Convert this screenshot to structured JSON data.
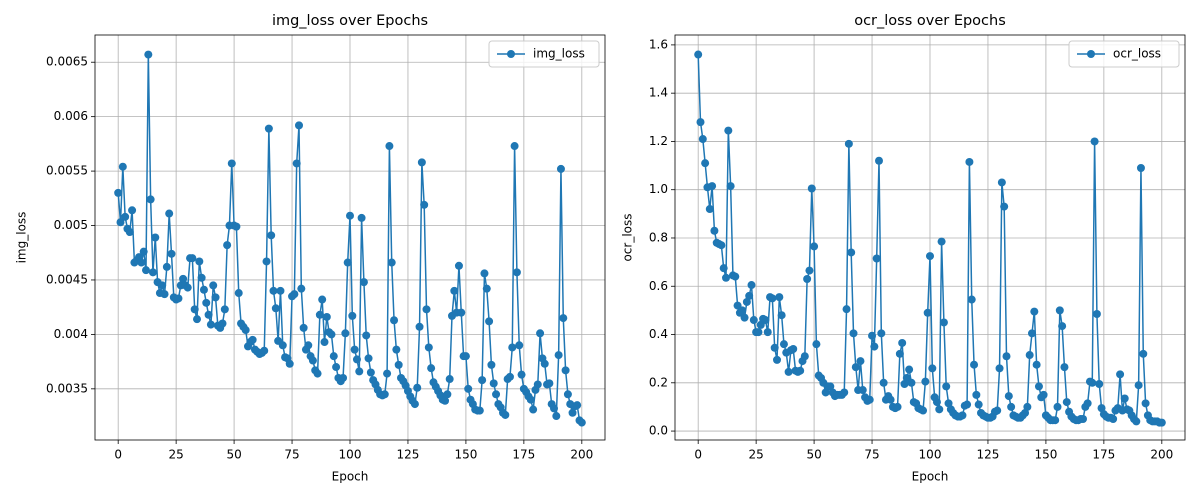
{
  "chart_data": [
    {
      "type": "line",
      "title": "img_loss over Epochs",
      "x_label": "Epoch",
      "y_label": "img_loss",
      "x": [
        0,
        1,
        2,
        3,
        4,
        5,
        6,
        7,
        8,
        9,
        10,
        11,
        12,
        13,
        14,
        15,
        16,
        17,
        18,
        19,
        20,
        21,
        22,
        23,
        24,
        25,
        26,
        27,
        28,
        29,
        30,
        31,
        32,
        33,
        34,
        35,
        36,
        37,
        38,
        39,
        40,
        41,
        42,
        43,
        44,
        45,
        46,
        47,
        48,
        49,
        50,
        51,
        52,
        53,
        54,
        55,
        56,
        57,
        58,
        59,
        60,
        61,
        62,
        63,
        64,
        65,
        66,
        67,
        68,
        69,
        70,
        71,
        72,
        73,
        74,
        75,
        76,
        77,
        78,
        79,
        80,
        81,
        82,
        83,
        84,
        85,
        86,
        87,
        88,
        89,
        90,
        91,
        92,
        93,
        94,
        95,
        96,
        97,
        98,
        99,
        100,
        101,
        102,
        103,
        104,
        105,
        106,
        107,
        108,
        109,
        110,
        111,
        112,
        113,
        114,
        115,
        116,
        117,
        118,
        119,
        120,
        121,
        122,
        123,
        124,
        125,
        126,
        127,
        128,
        129,
        130,
        131,
        132,
        133,
        134,
        135,
        136,
        137,
        138,
        139,
        140,
        141,
        142,
        143,
        144,
        145,
        146,
        147,
        148,
        149,
        150,
        151,
        152,
        153,
        154,
        155,
        156,
        157,
        158,
        159,
        160,
        161,
        162,
        163,
        164,
        165,
        166,
        167,
        168,
        169,
        170,
        171,
        172,
        173,
        174,
        175,
        176,
        177,
        178,
        179,
        180,
        181,
        182,
        183,
        184,
        185,
        186,
        187,
        188,
        189,
        190,
        191,
        192,
        193,
        194,
        195,
        196,
        197,
        198,
        199,
        200
      ],
      "series": [
        {
          "name": "img_loss",
          "color": "#1f77b4",
          "values": [
            0.0053,
            0.00503,
            0.00554,
            0.00508,
            0.00497,
            0.00494,
            0.00514,
            0.00466,
            0.00468,
            0.00471,
            0.00466,
            0.00476,
            0.00459,
            0.00657,
            0.00524,
            0.00457,
            0.00489,
            0.00448,
            0.00438,
            0.00445,
            0.00437,
            0.00462,
            0.00511,
            0.00474,
            0.00434,
            0.00432,
            0.00433,
            0.00445,
            0.00451,
            0.00445,
            0.00443,
            0.0047,
            0.0047,
            0.00423,
            0.00414,
            0.00467,
            0.00452,
            0.00441,
            0.00429,
            0.00418,
            0.00409,
            0.00445,
            0.00434,
            0.00408,
            0.00406,
            0.0041,
            0.00423,
            0.00482,
            0.005,
            0.00557,
            0.005,
            0.00499,
            0.00438,
            0.0041,
            0.00407,
            0.00404,
            0.00389,
            0.00393,
            0.00395,
            0.00386,
            0.00384,
            0.00382,
            0.00383,
            0.00385,
            0.00467,
            0.00589,
            0.00491,
            0.0044,
            0.00424,
            0.00394,
            0.0044,
            0.0039,
            0.00379,
            0.00378,
            0.00373,
            0.00435,
            0.00437,
            0.00557,
            0.00592,
            0.00442,
            0.00406,
            0.00386,
            0.0039,
            0.0038,
            0.00376,
            0.00367,
            0.00364,
            0.00418,
            0.00432,
            0.00393,
            0.00416,
            0.00402,
            0.004,
            0.0038,
            0.0037,
            0.0036,
            0.00357,
            0.0036,
            0.00401,
            0.00466,
            0.00509,
            0.00417,
            0.00386,
            0.00377,
            0.00366,
            0.00507,
            0.00448,
            0.00399,
            0.00378,
            0.00365,
            0.00358,
            0.00354,
            0.00349,
            0.00345,
            0.00344,
            0.00345,
            0.00364,
            0.00573,
            0.00466,
            0.00413,
            0.00386,
            0.00372,
            0.0036,
            0.00357,
            0.00353,
            0.00348,
            0.00343,
            0.00339,
            0.00336,
            0.00351,
            0.00407,
            0.00558,
            0.00519,
            0.00423,
            0.00388,
            0.00369,
            0.00356,
            0.00352,
            0.00348,
            0.00344,
            0.0034,
            0.00339,
            0.00345,
            0.00359,
            0.00417,
            0.0044,
            0.0042,
            0.00463,
            0.0042,
            0.0038,
            0.0038,
            0.0035,
            0.0034,
            0.00336,
            0.00331,
            0.0033,
            0.0033,
            0.00358,
            0.00456,
            0.00442,
            0.00412,
            0.00372,
            0.00355,
            0.00345,
            0.00336,
            0.00333,
            0.00328,
            0.00326,
            0.00359,
            0.00361,
            0.00388,
            0.00573,
            0.00457,
            0.0039,
            0.00363,
            0.0035,
            0.00347,
            0.00343,
            0.0034,
            0.00331,
            0.00349,
            0.00354,
            0.00401,
            0.00378,
            0.00373,
            0.00354,
            0.00355,
            0.00336,
            0.00332,
            0.00325,
            0.00381,
            0.00552,
            0.00415,
            0.00367,
            0.00345,
            0.00336,
            0.00328,
            0.00334,
            0.00335,
            0.00321,
            0.00319
          ]
        }
      ],
      "xlim": [
        -10,
        210
      ],
      "xticks": [
        0,
        25,
        50,
        75,
        100,
        125,
        150,
        175,
        200
      ],
      "ylim": [
        0.00303,
        0.00675
      ],
      "yticks": [
        0.0035,
        0.004,
        0.0045,
        0.005,
        0.0055,
        0.006,
        0.0065
      ],
      "grid": true,
      "legend": "upper right",
      "marker": "circle"
    },
    {
      "type": "line",
      "title": "ocr_loss over Epochs",
      "x_label": "Epoch",
      "y_label": "ocr_loss",
      "x": [
        0,
        1,
        2,
        3,
        4,
        5,
        6,
        7,
        8,
        9,
        10,
        11,
        12,
        13,
        14,
        15,
        16,
        17,
        18,
        19,
        20,
        21,
        22,
        23,
        24,
        25,
        26,
        27,
        28,
        29,
        30,
        31,
        32,
        33,
        34,
        35,
        36,
        37,
        38,
        39,
        40,
        41,
        42,
        43,
        44,
        45,
        46,
        47,
        48,
        49,
        50,
        51,
        52,
        53,
        54,
        55,
        56,
        57,
        58,
        59,
        60,
        61,
        62,
        63,
        64,
        65,
        66,
        67,
        68,
        69,
        70,
        71,
        72,
        73,
        74,
        75,
        76,
        77,
        78,
        79,
        80,
        81,
        82,
        83,
        84,
        85,
        86,
        87,
        88,
        89,
        90,
        91,
        92,
        93,
        94,
        95,
        96,
        97,
        98,
        99,
        100,
        101,
        102,
        103,
        104,
        105,
        106,
        107,
        108,
        109,
        110,
        111,
        112,
        113,
        114,
        115,
        116,
        117,
        118,
        119,
        120,
        121,
        122,
        123,
        124,
        125,
        126,
        127,
        128,
        129,
        130,
        131,
        132,
        133,
        134,
        135,
        136,
        137,
        138,
        139,
        140,
        141,
        142,
        143,
        144,
        145,
        146,
        147,
        148,
        149,
        150,
        151,
        152,
        153,
        154,
        155,
        156,
        157,
        158,
        159,
        160,
        161,
        162,
        163,
        164,
        165,
        166,
        167,
        168,
        169,
        170,
        171,
        172,
        173,
        174,
        175,
        176,
        177,
        178,
        179,
        180,
        181,
        182,
        183,
        184,
        185,
        186,
        187,
        188,
        189,
        190,
        191,
        192,
        193,
        194,
        195,
        196,
        197,
        198,
        199,
        200
      ],
      "series": [
        {
          "name": "ocr_loss",
          "color": "#1f77b4",
          "values": [
            1.56,
            1.28,
            1.21,
            1.11,
            1.01,
            0.92,
            1.015,
            0.83,
            0.78,
            0.775,
            0.77,
            0.675,
            0.635,
            1.245,
            1.015,
            0.645,
            0.64,
            0.52,
            0.49,
            0.5,
            0.47,
            0.535,
            0.56,
            0.605,
            0.46,
            0.41,
            0.41,
            0.44,
            0.465,
            0.46,
            0.41,
            0.555,
            0.55,
            0.345,
            0.295,
            0.555,
            0.48,
            0.36,
            0.325,
            0.245,
            0.335,
            0.34,
            0.25,
            0.245,
            0.25,
            0.29,
            0.31,
            0.63,
            0.665,
            1.005,
            0.765,
            0.36,
            0.23,
            0.22,
            0.2,
            0.16,
            0.185,
            0.185,
            0.16,
            0.145,
            0.15,
            0.15,
            0.15,
            0.16,
            0.505,
            1.19,
            0.74,
            0.405,
            0.265,
            0.17,
            0.29,
            0.17,
            0.14,
            0.125,
            0.13,
            0.395,
            0.35,
            0.715,
            1.12,
            0.405,
            0.2,
            0.13,
            0.145,
            0.13,
            0.1,
            0.095,
            0.1,
            0.32,
            0.365,
            0.195,
            0.22,
            0.255,
            0.2,
            0.12,
            0.115,
            0.095,
            0.09,
            0.085,
            0.205,
            0.49,
            0.725,
            0.26,
            0.14,
            0.12,
            0.09,
            0.785,
            0.45,
            0.185,
            0.115,
            0.09,
            0.075,
            0.065,
            0.06,
            0.06,
            0.065,
            0.105,
            0.11,
            1.115,
            0.545,
            0.275,
            0.15,
            0.11,
            0.075,
            0.065,
            0.06,
            0.055,
            0.055,
            0.06,
            0.08,
            0.085,
            0.26,
            1.03,
            0.93,
            0.31,
            0.145,
            0.1,
            0.065,
            0.06,
            0.055,
            0.055,
            0.065,
            0.075,
            0.1,
            0.315,
            0.405,
            0.495,
            0.275,
            0.185,
            0.14,
            0.15,
            0.065,
            0.055,
            0.045,
            0.045,
            0.045,
            0.1,
            0.5,
            0.435,
            0.265,
            0.12,
            0.08,
            0.06,
            0.05,
            0.045,
            0.045,
            0.05,
            0.05,
            0.1,
            0.115,
            0.205,
            0.2,
            1.2,
            0.485,
            0.195,
            0.095,
            0.07,
            0.06,
            0.055,
            0.055,
            0.05,
            0.085,
            0.095,
            0.235,
            0.085,
            0.135,
            0.09,
            0.085,
            0.065,
            0.05,
            0.04,
            0.19,
            1.09,
            0.32,
            0.115,
            0.065,
            0.045,
            0.04,
            0.04,
            0.04,
            0.035,
            0.035
          ]
        }
      ],
      "xlim": [
        -10,
        210
      ],
      "xticks": [
        0,
        25,
        50,
        75,
        100,
        125,
        150,
        175,
        200
      ],
      "ylim": [
        -0.037,
        1.641
      ],
      "yticks": [
        {
          "value": 0,
          "label": "0.0"
        },
        0.2,
        0.4,
        0.6,
        0.8,
        {
          "value": 1,
          "label": "1.0"
        },
        1.2,
        1.4,
        1.6
      ],
      "grid": true,
      "legend": "upper right",
      "marker": "circle"
    }
  ]
}
